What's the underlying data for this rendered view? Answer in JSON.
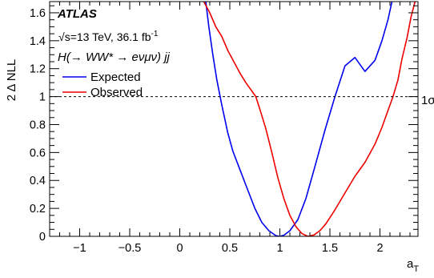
{
  "chart_data": {
    "type": "line",
    "xlabel": "a",
    "xlabel_sub": "T",
    "ylabel": "2 Δ NLL",
    "xlim": [
      -1.3,
      2.38
    ],
    "ylim": [
      0,
      1.68
    ],
    "x_ticks": [
      {
        "value": -1,
        "label": "−1"
      },
      {
        "value": -0.5,
        "label": "−0.5"
      },
      {
        "value": 0,
        "label": "0"
      },
      {
        "value": 0.5,
        "label": "0.5"
      },
      {
        "value": 1,
        "label": "1"
      },
      {
        "value": 1.5,
        "label": "1.5"
      },
      {
        "value": 2,
        "label": "2"
      }
    ],
    "y_ticks": [
      {
        "value": 0,
        "label": "0"
      },
      {
        "value": 0.2,
        "label": "0.2"
      },
      {
        "value": 0.4,
        "label": "0.4"
      },
      {
        "value": 0.6,
        "label": "0.6"
      },
      {
        "value": 0.8,
        "label": "0.8"
      },
      {
        "value": 1,
        "label": "1"
      },
      {
        "value": 1.2,
        "label": "1.2"
      },
      {
        "value": 1.4,
        "label": "1.4"
      },
      {
        "value": 1.6,
        "label": "1.6"
      }
    ],
    "reference_line": {
      "y": 1,
      "label": "1σ",
      "style": "dashed"
    },
    "legend_position": "top-left",
    "series": [
      {
        "name": "Expected",
        "color": "#0000ee",
        "x": [
          0.26,
          0.29,
          0.33,
          0.37,
          0.42,
          0.48,
          0.53,
          0.6,
          0.68,
          0.75,
          0.82,
          0.89,
          0.96,
          1.0,
          1.04,
          1.1,
          1.18,
          1.26,
          1.35,
          1.45,
          1.55,
          1.65,
          1.75,
          1.85,
          1.95,
          2.02,
          2.08,
          2.12
        ],
        "y": [
          1.68,
          1.5,
          1.3,
          1.12,
          0.94,
          0.74,
          0.61,
          0.48,
          0.33,
          0.2,
          0.1,
          0.04,
          0.005,
          0.0,
          0.008,
          0.04,
          0.12,
          0.27,
          0.5,
          0.76,
          1.0,
          1.22,
          1.28,
          1.18,
          1.26,
          1.4,
          1.55,
          1.68
        ]
      },
      {
        "name": "Observed",
        "color": "#ee0000",
        "x": [
          0.24,
          0.3,
          0.36,
          0.42,
          0.48,
          0.54,
          0.6,
          0.66,
          0.72,
          0.76,
          0.8,
          0.86,
          0.92,
          0.98,
          1.04,
          1.1,
          1.16,
          1.22,
          1.28,
          1.34,
          1.4,
          1.46,
          1.55,
          1.65,
          1.75,
          1.85,
          1.95,
          2.02,
          2.08,
          2.13,
          2.18,
          2.22,
          2.27,
          2.31,
          2.35
        ],
        "y": [
          1.68,
          1.6,
          1.5,
          1.43,
          1.33,
          1.25,
          1.17,
          1.1,
          1.04,
          1.0,
          0.91,
          0.77,
          0.6,
          0.42,
          0.27,
          0.15,
          0.07,
          0.02,
          0.0,
          0.01,
          0.04,
          0.09,
          0.19,
          0.31,
          0.43,
          0.53,
          0.66,
          0.78,
          0.9,
          1.0,
          1.12,
          1.27,
          1.42,
          1.57,
          1.68
        ]
      }
    ]
  },
  "annotations": {
    "experiment": "ATLAS",
    "energy_prefix": "s",
    "energy_text": "=13 TeV, 36.1 fb",
    "lumi_exponent": "-1",
    "process": "H(→ WW* → eνμν) jj"
  }
}
